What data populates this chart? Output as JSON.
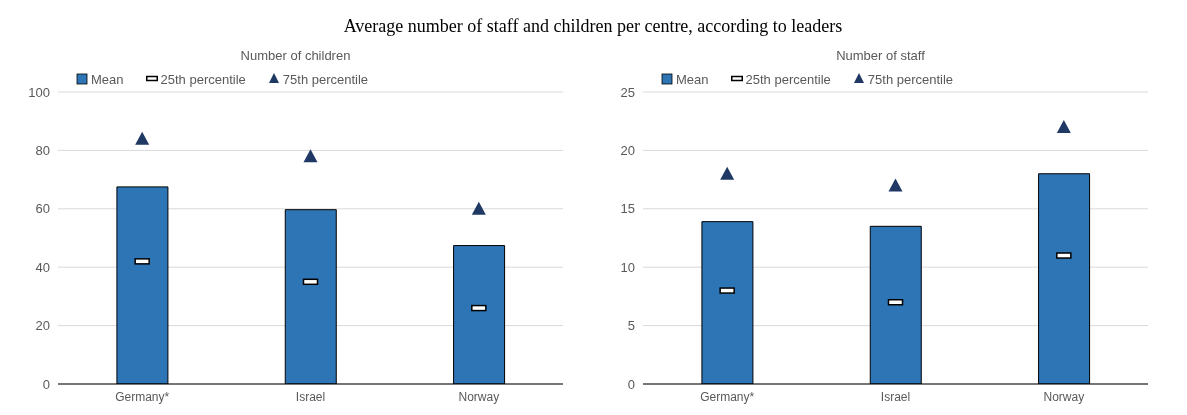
{
  "chart_data": [
    {
      "type": "bar",
      "title": "Average number of staff and children per centre, according to leaders",
      "subtitle": "Number of children",
      "categories": [
        "Germany*",
        "Israel",
        "Norway"
      ],
      "series": [
        {
          "name": "Mean",
          "color": "#2e75b6",
          "values": [
            67.5,
            59.7,
            47.4
          ]
        },
        {
          "name": "25th percentile",
          "type": "scatter",
          "marker": "square",
          "color": "#000000",
          "values": [
            42,
            35,
            26
          ]
        },
        {
          "name": "75th percentile",
          "type": "scatter",
          "marker": "triangle",
          "color": "#1f3864",
          "values": [
            84,
            78,
            60
          ]
        }
      ],
      "ylim": [
        0,
        100
      ],
      "yticks": [
        0,
        20,
        40,
        60,
        80,
        100
      ],
      "grid": "y",
      "legend": "top"
    },
    {
      "type": "bar",
      "subtitle": "Number of staff",
      "categories": [
        "Germany*",
        "Israel",
        "Norway"
      ],
      "series": [
        {
          "name": "Mean",
          "color": "#2e75b6",
          "values": [
            13.9,
            13.5,
            18
          ]
        },
        {
          "name": "25th percentile",
          "type": "scatter",
          "marker": "square",
          "color": "#000000",
          "values": [
            8,
            7,
            11
          ]
        },
        {
          "name": "75th percentile",
          "type": "scatter",
          "marker": "triangle",
          "color": "#1f3864",
          "values": [
            18,
            17,
            22
          ]
        }
      ],
      "ylim": [
        0,
        25
      ],
      "yticks": [
        0,
        5,
        10,
        15,
        20,
        25
      ],
      "grid": "y",
      "legend": "top"
    }
  ]
}
